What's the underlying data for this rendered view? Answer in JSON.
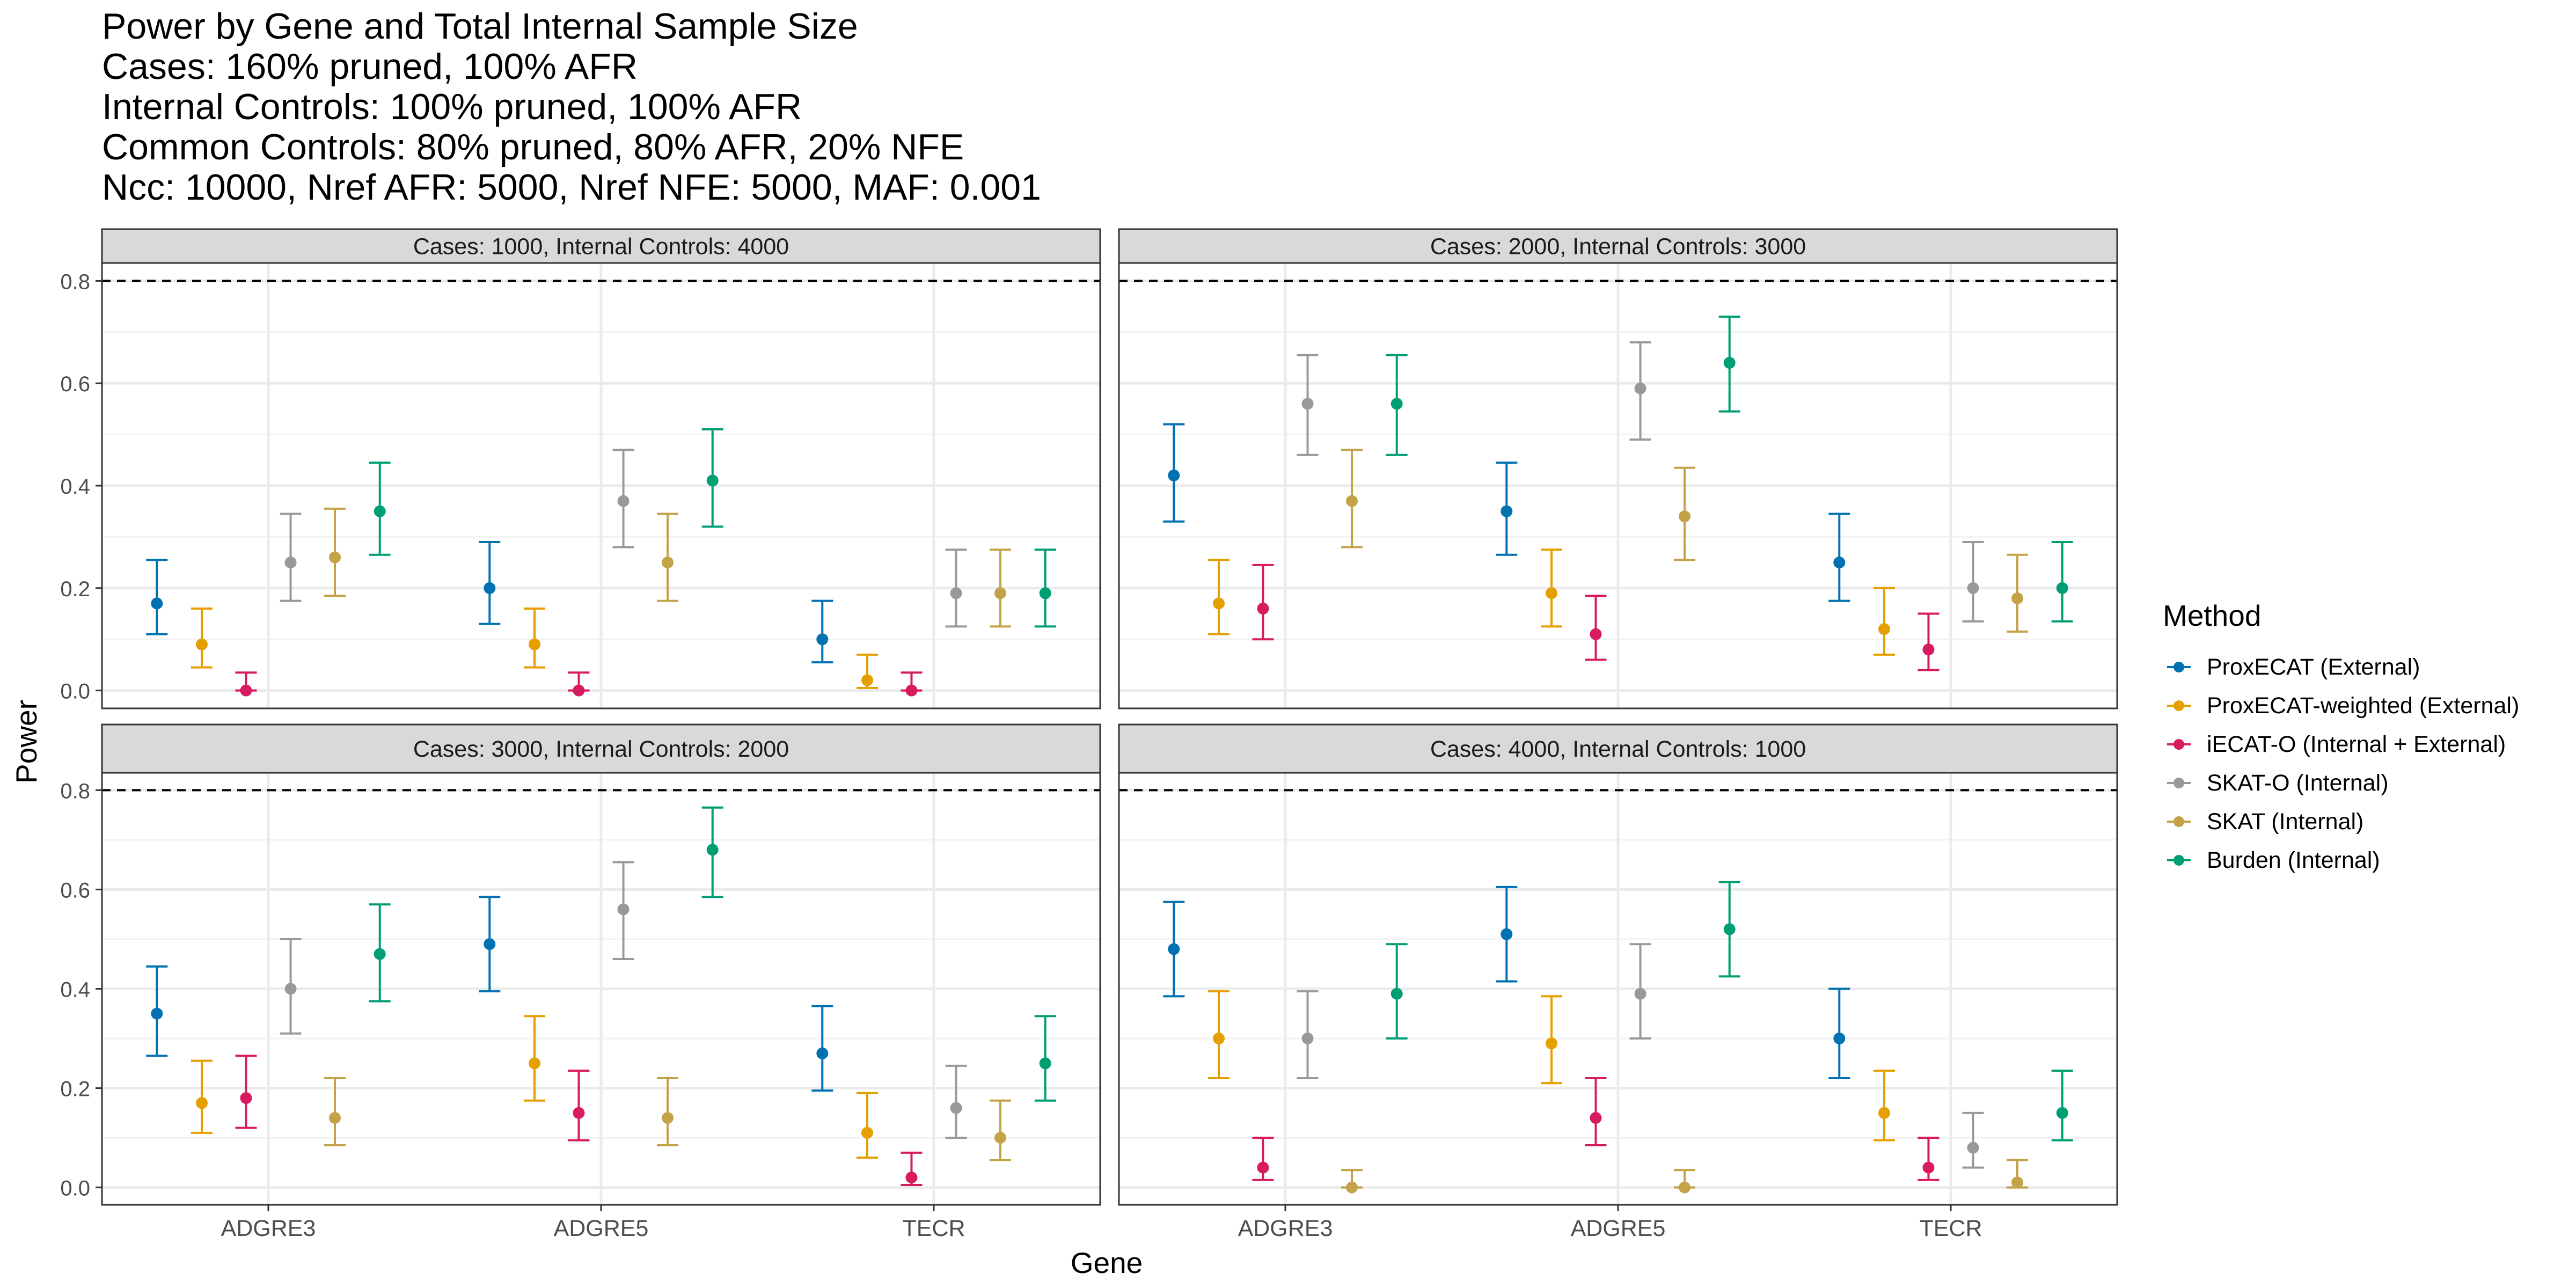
{
  "chart_data": {
    "type": "scatter",
    "title_lines": [
      "Power by Gene and Total Internal Sample Size",
      "Cases: 160% pruned, 100% AFR",
      "Internal Controls: 100% pruned, 100% AFR",
      "Common Controls: 80% pruned, 80% AFR, 20% NFE",
      "Ncc: 10000, Nref AFR: 5000, Nref NFE: 5000, MAF: 0.001"
    ],
    "xlabel": "Gene",
    "ylabel": "Power",
    "ylim": [
      -0.035,
      0.835
    ],
    "yticks": [
      "0.0",
      "0.2",
      "0.4",
      "0.6",
      "0.8"
    ],
    "reference_line": 0.8,
    "categories": [
      "ADGRE3",
      "ADGRE5",
      "TECR"
    ],
    "legend_title": "Method",
    "legend_position": "right",
    "grid": true,
    "series": [
      {
        "name": "ProxECAT (External)",
        "color": "#0072B2"
      },
      {
        "name": "ProxECAT-weighted (External)",
        "color": "#E69F00"
      },
      {
        "name": "iECAT-O (Internal + External)",
        "color": "#D81B60"
      },
      {
        "name": "SKAT-O (Internal)",
        "color": "#999999"
      },
      {
        "name": "SKAT (Internal)",
        "color": "#C4A248"
      },
      {
        "name": "Burden (Internal)",
        "color": "#009E73"
      }
    ],
    "panels": [
      {
        "strip": "Cases: 1000, Internal Controls: 4000",
        "values": [
          [
            0.17,
            0.2,
            0.1
          ],
          [
            0.09,
            0.09,
            0.02
          ],
          [
            0.0,
            0.0,
            0.0
          ],
          [
            0.25,
            0.37,
            0.19
          ],
          [
            0.26,
            0.25,
            0.19
          ],
          [
            0.35,
            0.41,
            0.19
          ]
        ],
        "lower": [
          [
            0.11,
            0.13,
            0.055
          ],
          [
            0.045,
            0.045,
            0.005
          ],
          [
            0.0,
            0.0,
            0.0
          ],
          [
            0.175,
            0.28,
            0.125
          ],
          [
            0.185,
            0.175,
            0.125
          ],
          [
            0.265,
            0.32,
            0.125
          ]
        ],
        "upper": [
          [
            0.255,
            0.29,
            0.175
          ],
          [
            0.16,
            0.16,
            0.07
          ],
          [
            0.035,
            0.035,
            0.035
          ],
          [
            0.345,
            0.47,
            0.275
          ],
          [
            0.355,
            0.345,
            0.275
          ],
          [
            0.445,
            0.51,
            0.275
          ]
        ]
      },
      {
        "strip": "Cases: 2000, Internal Controls: 3000",
        "values": [
          [
            0.42,
            0.35,
            0.25
          ],
          [
            0.17,
            0.19,
            0.12
          ],
          [
            0.16,
            0.11,
            0.08
          ],
          [
            0.56,
            0.59,
            0.2
          ],
          [
            0.37,
            0.34,
            0.18
          ],
          [
            0.56,
            0.64,
            0.2
          ]
        ],
        "lower": [
          [
            0.33,
            0.265,
            0.175
          ],
          [
            0.11,
            0.125,
            0.07
          ],
          [
            0.1,
            0.06,
            0.04
          ],
          [
            0.46,
            0.49,
            0.135
          ],
          [
            0.28,
            0.255,
            0.115
          ],
          [
            0.46,
            0.545,
            0.135
          ]
        ],
        "upper": [
          [
            0.52,
            0.445,
            0.345
          ],
          [
            0.255,
            0.275,
            0.2
          ],
          [
            0.245,
            0.185,
            0.15
          ],
          [
            0.655,
            0.68,
            0.29
          ],
          [
            0.47,
            0.435,
            0.265
          ],
          [
            0.655,
            0.73,
            0.29
          ]
        ]
      },
      {
        "strip": "Cases: 3000, Internal Controls: 2000",
        "values": [
          [
            0.35,
            0.49,
            0.27
          ],
          [
            0.17,
            0.25,
            0.11
          ],
          [
            0.18,
            0.15,
            0.02
          ],
          [
            0.4,
            0.56,
            0.16
          ],
          [
            0.14,
            0.14,
            0.1
          ],
          [
            0.47,
            0.68,
            0.25
          ]
        ],
        "lower": [
          [
            0.265,
            0.395,
            0.195
          ],
          [
            0.11,
            0.175,
            0.06
          ],
          [
            0.12,
            0.095,
            0.005
          ],
          [
            0.31,
            0.46,
            0.1
          ],
          [
            0.085,
            0.085,
            0.055
          ],
          [
            0.375,
            0.585,
            0.175
          ]
        ],
        "upper": [
          [
            0.445,
            0.585,
            0.365
          ],
          [
            0.255,
            0.345,
            0.19
          ],
          [
            0.265,
            0.235,
            0.07
          ],
          [
            0.5,
            0.655,
            0.245
          ],
          [
            0.22,
            0.22,
            0.175
          ],
          [
            0.57,
            0.765,
            0.345
          ]
        ]
      },
      {
        "strip": "Cases: 4000, Internal Controls: 1000",
        "values": [
          [
            0.48,
            0.51,
            0.3
          ],
          [
            0.3,
            0.29,
            0.15
          ],
          [
            0.04,
            0.14,
            0.04
          ],
          [
            0.3,
            0.39,
            0.08
          ],
          [
            0.0,
            0.0,
            0.01
          ],
          [
            0.39,
            0.52,
            0.15
          ]
        ],
        "lower": [
          [
            0.385,
            0.415,
            0.22
          ],
          [
            0.22,
            0.21,
            0.095
          ],
          [
            0.015,
            0.085,
            0.015
          ],
          [
            0.22,
            0.3,
            0.04
          ],
          [
            0.0,
            0.0,
            0.0
          ],
          [
            0.3,
            0.425,
            0.095
          ]
        ],
        "upper": [
          [
            0.575,
            0.605,
            0.4
          ],
          [
            0.395,
            0.385,
            0.235
          ],
          [
            0.1,
            0.22,
            0.1
          ],
          [
            0.395,
            0.49,
            0.15
          ],
          [
            0.035,
            0.035,
            0.055
          ],
          [
            0.49,
            0.615,
            0.235
          ]
        ]
      }
    ]
  }
}
